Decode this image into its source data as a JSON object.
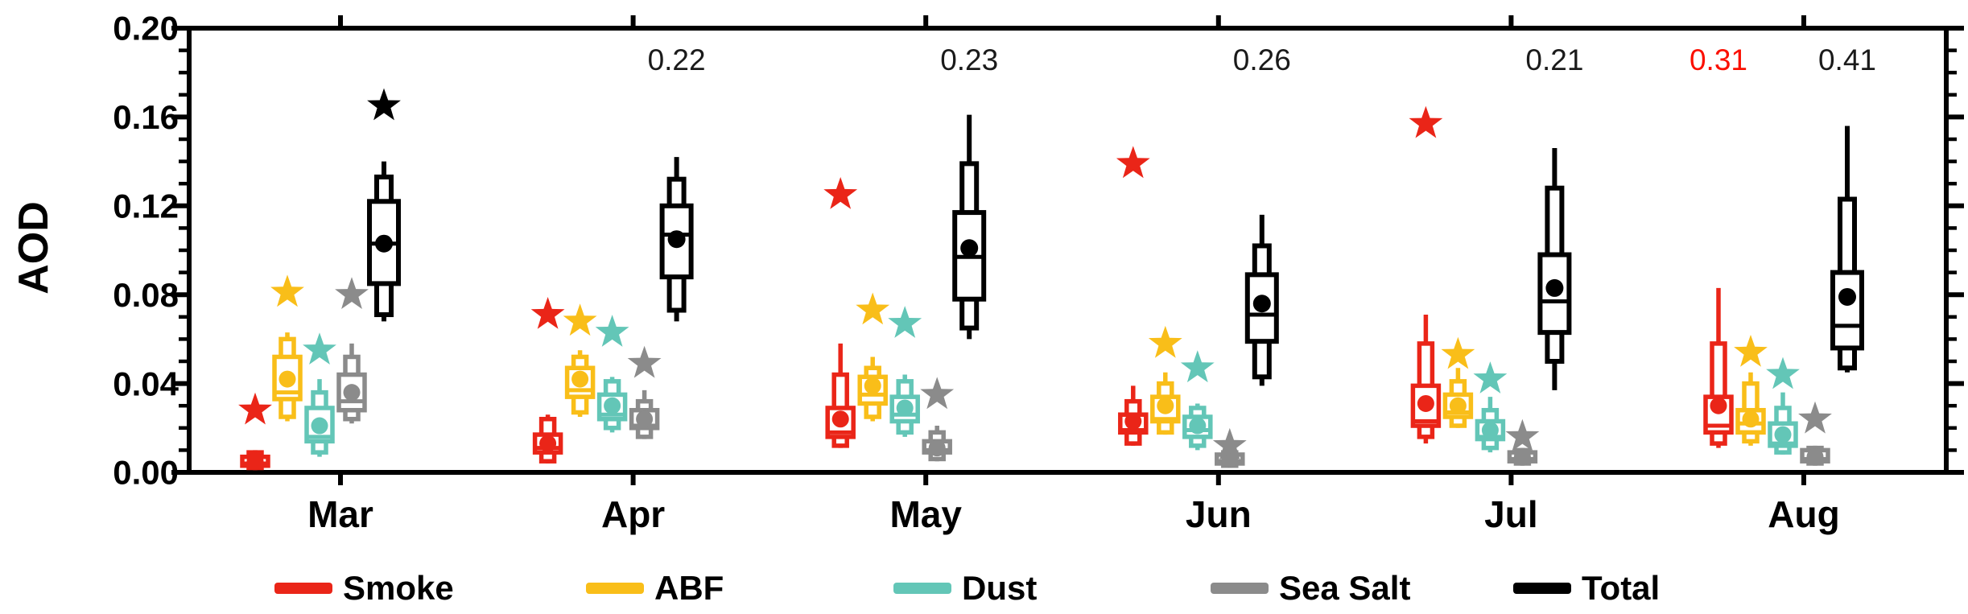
{
  "figure": {
    "ylabel": "AOD",
    "annotation_text_color": "#1a1a1a",
    "annotation_red_color": "#fb0f00"
  },
  "legend": {
    "items": [
      {
        "label": "Smoke",
        "color": "#ea2518"
      },
      {
        "label": "ABF",
        "color": "#f9be19"
      },
      {
        "label": "Dust",
        "color": "#63c6b7"
      },
      {
        "label": "Sea Salt",
        "color": "#8b8b8b"
      },
      {
        "label": "Total",
        "color": "#000000"
      }
    ]
  },
  "chart_data": {
    "type": "box",
    "title": "",
    "xlabel": "",
    "ylabel": "AOD",
    "ylim": [
      0.0,
      0.2
    ],
    "y_major_ticks": [
      0.0,
      0.04,
      0.08,
      0.12,
      0.16,
      0.2
    ],
    "y_tick_labels": [
      "0.00",
      "0.04",
      "0.08",
      "0.12",
      "0.16",
      "0.20"
    ],
    "y_minor_step": 0.01,
    "grid": false,
    "legend_position": "bottom",
    "categories": [
      "Mar",
      "Apr",
      "May",
      "Jun",
      "Jul",
      "Aug"
    ],
    "box_definition": "narrow box = 10th-90th percentile, wide box = 25th-75th percentile, line = median, dot = mean, whiskers = min/max, star = maximum outlier; off-scale maxima printed as text at top",
    "series": [
      {
        "name": "Smoke",
        "color": "#ea2518",
        "stats": [
          {
            "min": 0.001,
            "p10": 0.002,
            "p25": 0.003,
            "median": 0.004,
            "mean": 0.005,
            "p75": 0.007,
            "p90": 0.009,
            "max": 0.01,
            "star": 0.028,
            "star_offscale": null
          },
          {
            "min": 0.004,
            "p10": 0.005,
            "p25": 0.009,
            "median": 0.011,
            "mean": 0.013,
            "p75": 0.017,
            "p90": 0.024,
            "max": 0.026,
            "star": 0.071,
            "star_offscale": null
          },
          {
            "min": 0.011,
            "p10": 0.012,
            "p25": 0.016,
            "median": 0.018,
            "mean": 0.024,
            "p75": 0.029,
            "p90": 0.044,
            "max": 0.058,
            "star": 0.125,
            "star_offscale": null
          },
          {
            "min": 0.012,
            "p10": 0.013,
            "p25": 0.018,
            "median": 0.019,
            "mean": 0.023,
            "p75": 0.026,
            "p90": 0.032,
            "max": 0.039,
            "star": 0.139,
            "star_offscale": null
          },
          {
            "min": 0.013,
            "p10": 0.016,
            "p25": 0.021,
            "median": 0.023,
            "mean": 0.031,
            "p75": 0.039,
            "p90": 0.058,
            "max": 0.071,
            "star": 0.157,
            "star_offscale": null
          },
          {
            "min": 0.011,
            "p10": 0.013,
            "p25": 0.018,
            "median": 0.021,
            "mean": 0.03,
            "p75": 0.034,
            "p90": 0.058,
            "max": 0.083,
            "star": null,
            "star_offscale": "0.31"
          }
        ]
      },
      {
        "name": "ABF",
        "color": "#f9be19",
        "stats": [
          {
            "min": 0.023,
            "p10": 0.025,
            "p25": 0.033,
            "median": 0.036,
            "mean": 0.042,
            "p75": 0.052,
            "p90": 0.06,
            "max": 0.063,
            "star": 0.081,
            "star_offscale": null
          },
          {
            "min": 0.025,
            "p10": 0.027,
            "p25": 0.034,
            "median": 0.037,
            "mean": 0.042,
            "p75": 0.047,
            "p90": 0.052,
            "max": 0.055,
            "star": 0.068,
            "star_offscale": null
          },
          {
            "min": 0.023,
            "p10": 0.025,
            "p25": 0.031,
            "median": 0.035,
            "mean": 0.039,
            "p75": 0.043,
            "p90": 0.047,
            "max": 0.052,
            "star": 0.073,
            "star_offscale": null
          },
          {
            "min": 0.017,
            "p10": 0.018,
            "p25": 0.023,
            "median": 0.024,
            "mean": 0.03,
            "p75": 0.034,
            "p90": 0.04,
            "max": 0.045,
            "star": 0.058,
            "star_offscale": null
          },
          {
            "min": 0.02,
            "p10": 0.021,
            "p25": 0.025,
            "median": 0.027,
            "mean": 0.03,
            "p75": 0.035,
            "p90": 0.041,
            "max": 0.047,
            "star": 0.053,
            "star_offscale": null
          },
          {
            "min": 0.012,
            "p10": 0.014,
            "p25": 0.018,
            "median": 0.022,
            "mean": 0.024,
            "p75": 0.028,
            "p90": 0.04,
            "max": 0.045,
            "star": 0.054,
            "star_offscale": null
          }
        ]
      },
      {
        "name": "Dust",
        "color": "#63c6b7",
        "stats": [
          {
            "min": 0.007,
            "p10": 0.009,
            "p25": 0.014,
            "median": 0.016,
            "mean": 0.021,
            "p75": 0.029,
            "p90": 0.036,
            "max": 0.042,
            "star": 0.055,
            "star_offscale": null
          },
          {
            "min": 0.018,
            "p10": 0.02,
            "p25": 0.024,
            "median": 0.026,
            "mean": 0.03,
            "p75": 0.035,
            "p90": 0.041,
            "max": 0.043,
            "star": 0.063,
            "star_offscale": null
          },
          {
            "min": 0.016,
            "p10": 0.018,
            "p25": 0.023,
            "median": 0.026,
            "mean": 0.029,
            "p75": 0.034,
            "p90": 0.041,
            "max": 0.044,
            "star": 0.067,
            "star_offscale": null
          },
          {
            "min": 0.01,
            "p10": 0.012,
            "p25": 0.016,
            "median": 0.019,
            "mean": 0.021,
            "p75": 0.025,
            "p90": 0.029,
            "max": 0.031,
            "star": 0.047,
            "star_offscale": null
          },
          {
            "min": 0.009,
            "p10": 0.011,
            "p25": 0.015,
            "median": 0.016,
            "mean": 0.019,
            "p75": 0.023,
            "p90": 0.028,
            "max": 0.034,
            "star": 0.042,
            "star_offscale": null
          },
          {
            "min": 0.008,
            "p10": 0.009,
            "p25": 0.012,
            "median": 0.013,
            "mean": 0.017,
            "p75": 0.022,
            "p90": 0.029,
            "max": 0.036,
            "star": 0.044,
            "star_offscale": null
          }
        ]
      },
      {
        "name": "Sea Salt",
        "color": "#8b8b8b",
        "stats": [
          {
            "min": 0.022,
            "p10": 0.024,
            "p25": 0.028,
            "median": 0.032,
            "mean": 0.036,
            "p75": 0.044,
            "p90": 0.052,
            "max": 0.058,
            "star": 0.08,
            "star_offscale": null
          },
          {
            "min": 0.015,
            "p10": 0.016,
            "p25": 0.02,
            "median": 0.021,
            "mean": 0.024,
            "p75": 0.028,
            "p90": 0.032,
            "max": 0.037,
            "star": 0.049,
            "star_offscale": null
          },
          {
            "min": 0.005,
            "p10": 0.006,
            "p25": 0.009,
            "median": 0.01,
            "mean": 0.011,
            "p75": 0.014,
            "p90": 0.018,
            "max": 0.021,
            "star": 0.035,
            "star_offscale": null
          },
          {
            "min": 0.002,
            "p10": 0.003,
            "p25": 0.004,
            "median": 0.005,
            "mean": 0.006,
            "p75": 0.008,
            "p90": 0.009,
            "max": 0.01,
            "star": 0.012,
            "star_offscale": null
          },
          {
            "min": 0.003,
            "p10": 0.004,
            "p25": 0.005,
            "median": 0.006,
            "mean": 0.007,
            "p75": 0.009,
            "p90": 0.01,
            "max": 0.011,
            "star": 0.016,
            "star_offscale": null
          },
          {
            "min": 0.003,
            "p10": 0.004,
            "p25": 0.005,
            "median": 0.006,
            "mean": 0.007,
            "p75": 0.01,
            "p90": 0.011,
            "max": 0.012,
            "star": 0.024,
            "star_offscale": null
          }
        ]
      },
      {
        "name": "Total",
        "color": "#000000",
        "stats": [
          {
            "min": 0.068,
            "p10": 0.071,
            "p25": 0.085,
            "median": 0.103,
            "mean": 0.103,
            "p75": 0.122,
            "p90": 0.133,
            "max": 0.14,
            "star": 0.165,
            "star_offscale": null
          },
          {
            "min": 0.068,
            "p10": 0.073,
            "p25": 0.088,
            "median": 0.107,
            "mean": 0.105,
            "p75": 0.12,
            "p90": 0.132,
            "max": 0.142,
            "star": null,
            "star_offscale": "0.22"
          },
          {
            "min": 0.06,
            "p10": 0.065,
            "p25": 0.078,
            "median": 0.097,
            "mean": 0.101,
            "p75": 0.117,
            "p90": 0.139,
            "max": 0.161,
            "star": null,
            "star_offscale": "0.23"
          },
          {
            "min": 0.039,
            "p10": 0.043,
            "p25": 0.059,
            "median": 0.071,
            "mean": 0.076,
            "p75": 0.089,
            "p90": 0.102,
            "max": 0.116,
            "star": null,
            "star_offscale": "0.26"
          },
          {
            "min": 0.037,
            "p10": 0.05,
            "p25": 0.063,
            "median": 0.077,
            "mean": 0.083,
            "p75": 0.098,
            "p90": 0.128,
            "max": 0.146,
            "star": null,
            "star_offscale": "0.21"
          },
          {
            "min": 0.045,
            "p10": 0.047,
            "p25": 0.056,
            "median": 0.066,
            "mean": 0.079,
            "p75": 0.09,
            "p90": 0.123,
            "max": 0.156,
            "star": null,
            "star_offscale": "0.41"
          }
        ]
      }
    ]
  }
}
